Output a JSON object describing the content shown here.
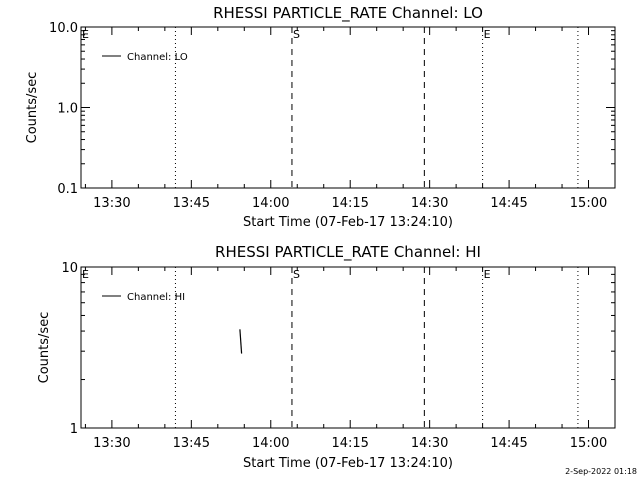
{
  "footer": {
    "date_stamp": "2-Sep-2022 01:18"
  },
  "chart_data": [
    {
      "type": "line",
      "title": "RHESSI PARTICLE_RATE Channel: LO",
      "xlabel": "Start Time (07-Feb-17 13:24:10)",
      "ylabel": "Counts/sec",
      "xlim": [
        "13:24:10",
        "15:05"
      ],
      "x_ticks": [
        "13:30",
        "13:45",
        "14:00",
        "14:15",
        "14:30",
        "14:45",
        "15:00"
      ],
      "y_scale": "log",
      "ylim": [
        0.1,
        10.0
      ],
      "y_ticks": [
        "0.1",
        "1.0",
        "10.0"
      ],
      "legend": {
        "position": "top-left",
        "entries": [
          "Channel: LO"
        ]
      },
      "grid": false,
      "series": [
        {
          "name": "Channel: LO",
          "x": [],
          "y": []
        }
      ],
      "vlines": [
        {
          "x": "13:42",
          "style": "dotted",
          "label": ""
        },
        {
          "x": "14:04",
          "style": "dashed",
          "label": "S"
        },
        {
          "x": "14:29",
          "style": "dashed",
          "label": ""
        },
        {
          "x": "14:40",
          "style": "dotted",
          "label": "E"
        },
        {
          "x": "14:58",
          "style": "dotted",
          "label": ""
        }
      ],
      "edge_labels": [
        {
          "x": "13:24:10",
          "label": "E"
        }
      ]
    },
    {
      "type": "line",
      "title": "RHESSI PARTICLE_RATE Channel: HI",
      "xlabel": "Start Time (07-Feb-17 13:24:10)",
      "ylabel": "Counts/sec",
      "xlim": [
        "13:24:10",
        "15:05"
      ],
      "x_ticks": [
        "13:30",
        "13:45",
        "14:00",
        "14:15",
        "14:30",
        "14:45",
        "15:00"
      ],
      "y_scale": "log",
      "ylim": [
        1,
        10
      ],
      "y_ticks": [
        "1",
        "10"
      ],
      "legend": {
        "position": "top-left",
        "entries": [
          "Channel: HI"
        ]
      },
      "grid": false,
      "series": [
        {
          "name": "Channel: HI",
          "x": [
            "13:54:10",
            "13:54:30"
          ],
          "y": [
            4.1,
            2.9
          ]
        }
      ],
      "vlines": [
        {
          "x": "13:42",
          "style": "dotted",
          "label": ""
        },
        {
          "x": "14:04",
          "style": "dashed",
          "label": "S"
        },
        {
          "x": "14:29",
          "style": "dashed",
          "label": ""
        },
        {
          "x": "14:40",
          "style": "dotted",
          "label": "E"
        },
        {
          "x": "14:58",
          "style": "dotted",
          "label": ""
        }
      ],
      "edge_labels": [
        {
          "x": "13:24:10",
          "label": "E"
        }
      ]
    }
  ]
}
